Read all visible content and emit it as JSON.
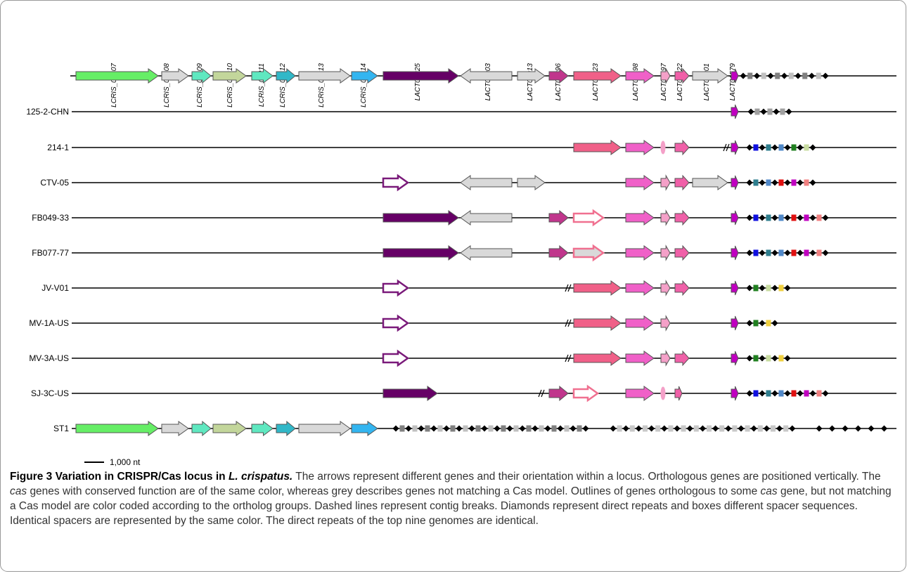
{
  "gene_labels": [
    "LCRIS_01207",
    "LCRIS_01208",
    "LCRIS_01209",
    "LCRIS_01210",
    "LCRIS_01211",
    "LCRIS_01212",
    "LCRIS_01213",
    "LCRIS_01214",
    "LACT01825",
    "LACT00003",
    "LACT00013",
    "LACT02396",
    "LACT01823",
    "LACT01698",
    "LACT01697",
    "LACT01822",
    "LACT00001",
    "LACT01579"
  ],
  "genomes": [
    "125-2-CHN",
    "214-1",
    "CTV-05",
    "FB049-33",
    "FB077-77",
    "JV-V01",
    "MV-1A-US",
    "MV-3A-US",
    "SJ-3C-US",
    "ST1"
  ],
  "scale_label": "1,000 nt",
  "caption": {
    "title": "Figure 3 Variation in CRISPR/Cas locus in",
    "species": "L. crispatus.",
    "text_1": "The arrows represent different genes and their orientation within a locus. Orthologous genes are positioned vertically. The",
    "italic_1": "cas",
    "text_2": "genes with conserved function are of the same color, whereas grey describes genes not matching a Cas model. Outlines of genes orthologous to some",
    "italic_2": "cas",
    "text_3": "gene, but not matching a Cas model are color coded according to the ortholog groups. Dashed lines represent contig breaks. Diamonds represent direct repeats and boxes different spacer sequences. Identical spacers are represented by the same color. The direct repeats of the top nine genomes are identical."
  }
}
